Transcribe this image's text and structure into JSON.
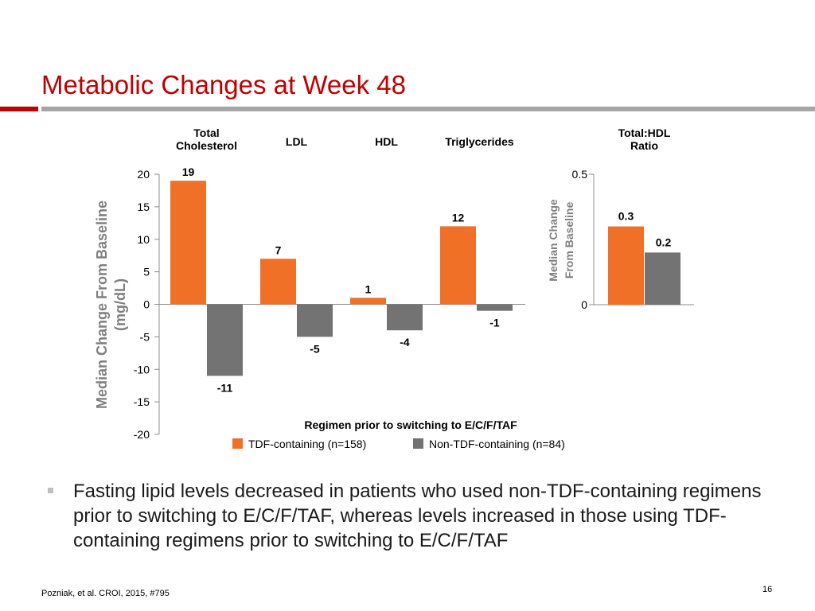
{
  "slide": {
    "title": "Metabolic Changes at Week 48",
    "bullet": "Fasting lipid levels decreased in patients who used non-TDF-containing regimens prior to switching to E/C/F/TAF, whereas levels increased in those using TDF-containing regimens prior to switching to E/C/F/TAF",
    "citation": "Pozniak, et al. CROI, 2015, #795",
    "page_number": "16"
  },
  "colors": {
    "title": "#c00000",
    "tdf": "#f07028",
    "non_tdf": "#737373",
    "rule_grey": "#a6a6a6"
  },
  "chart_data": [
    {
      "type": "bar",
      "categories": [
        "Total Cholesterol",
        "LDL",
        "HDL",
        "Triglycerides"
      ],
      "category_labels": [
        [
          "Total",
          "Cholesterol"
        ],
        [
          "LDL"
        ],
        [
          "HDL"
        ],
        [
          "Triglycerides"
        ]
      ],
      "series": [
        {
          "name": "TDF-containing (n=158)",
          "values": [
            19,
            7,
            1,
            12
          ],
          "value_labels": [
            "19",
            "7",
            "1",
            "12"
          ]
        },
        {
          "name": "Non-TDF-containing (n=84)",
          "values": [
            -11,
            -5,
            -4,
            -1
          ],
          "value_labels": [
            "-11",
            "-5",
            "-4",
            "-1"
          ]
        }
      ],
      "ylabel": [
        "Median Change From Baseline",
        "(mg/dL)"
      ],
      "ylim": [
        -20,
        20
      ],
      "yticks": [
        20,
        15,
        10,
        5,
        0,
        -5,
        -10,
        -15,
        -20
      ],
      "ytick_labels": [
        "20",
        "15",
        "10",
        "5",
        "0",
        "-5",
        "-10",
        "-15",
        "-20"
      ],
      "legend_title": "Regimen prior to switching to E/C/F/TAF",
      "legend_position": "bottom"
    },
    {
      "type": "bar",
      "categories": [
        "Total:HDL Ratio"
      ],
      "category_labels": [
        [
          "Total:HDL",
          "Ratio"
        ]
      ],
      "series": [
        {
          "name": "TDF-containing (n=158)",
          "values": [
            0.3
          ],
          "value_labels": [
            "0.3"
          ]
        },
        {
          "name": "Non-TDF-containing (n=84)",
          "values": [
            0.2
          ],
          "value_labels": [
            "0.2"
          ]
        }
      ],
      "ylabel": [
        "Median Change",
        "From Baseline"
      ],
      "ylim": [
        0,
        0.5
      ],
      "yticks": [
        0.5,
        0
      ],
      "ytick_labels": [
        "0.5",
        "0"
      ]
    }
  ]
}
